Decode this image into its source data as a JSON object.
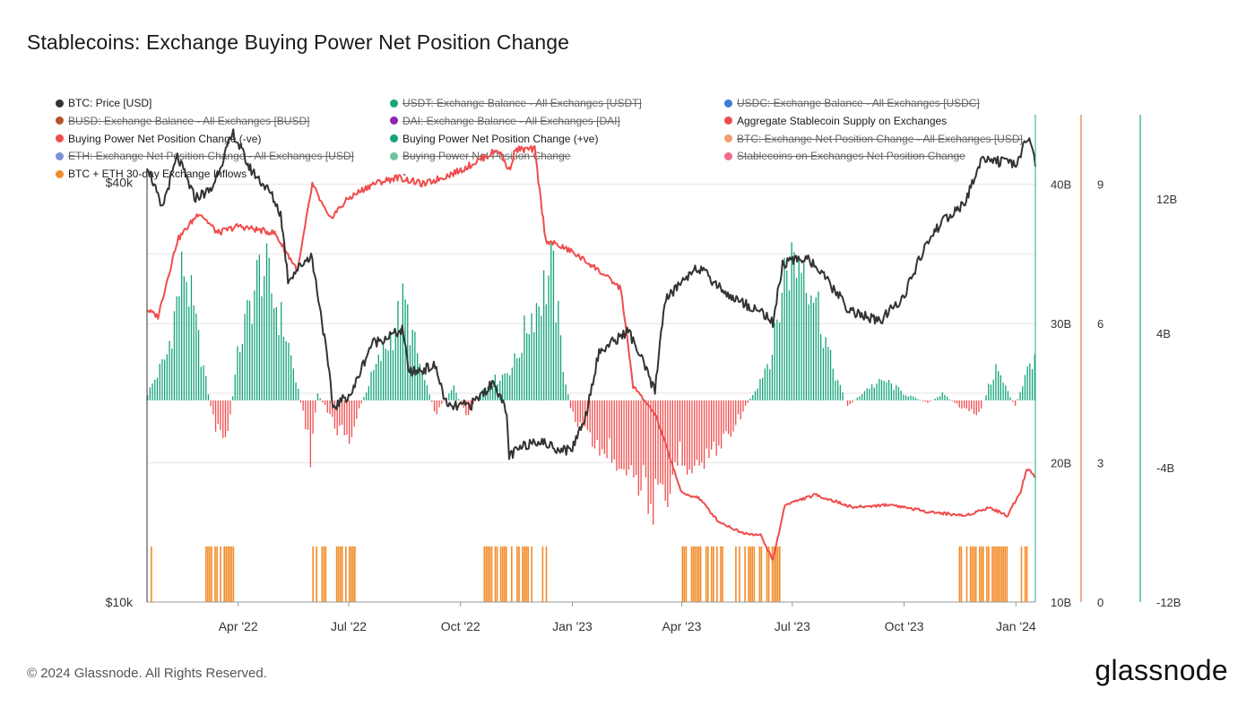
{
  "title": "Stablecoins: Exchange Buying Power Net Position Change",
  "footer": "© 2024 Glassnode. All Rights Reserved.",
  "brand": "glassnode",
  "legend": [
    {
      "label": "BTC: Price [USD]",
      "color": "#333333",
      "hidden": false
    },
    {
      "label": "USDT: Exchange Balance - All Exchanges [USDT]",
      "color": "#1aa57e",
      "hidden": true
    },
    {
      "label": "USDC: Exchange Balance - All Exchanges [USDC]",
      "color": "#3a7bd5",
      "hidden": true
    },
    {
      "label": "BUSD: Exchange Balance - All Exchanges [BUSD]",
      "color": "#b5542a",
      "hidden": true
    },
    {
      "label": "DAI: Exchange Balance - All Exchanges [DAI]",
      "color": "#8e24aa",
      "hidden": true
    },
    {
      "label": "Aggregate Stablecoin Supply on Exchanges",
      "color": "#f04c4c",
      "hidden": false
    },
    {
      "label": "Buying Power Net Position Change (-ve)",
      "color": "#f04c4c",
      "hidden": false
    },
    {
      "label": "Buying Power Net Position Change (+ve)",
      "color": "#13a37a",
      "hidden": false
    },
    {
      "label": "BTC: Exchange Net Position Change - All Exchanges [USD]",
      "color": "#f0a070",
      "hidden": true
    },
    {
      "label": "ETH: Exchange Net Position Change - All Exchanges [USD]",
      "color": "#7b8fd6",
      "hidden": true
    },
    {
      "label": "Buying Power Net Position Change",
      "color": "#6cc29c",
      "hidden": true
    },
    {
      "label": "Stablecoins on Exchanges Net Position Change",
      "color": "#ef6b8a",
      "hidden": true
    },
    {
      "label": "BTC + ETH 30-day Exchange Inflows",
      "color": "#f28c28",
      "hidden": false
    },
    {
      "label": "-",
      "color": "",
      "hidden": false
    }
  ],
  "chart_data": {
    "type": "line",
    "x_ticks": [
      "Apr '22",
      "Jul '22",
      "Oct '22",
      "Jan '23",
      "Apr '23",
      "Jul '23",
      "Oct '23",
      "Jan '24"
    ],
    "x_range": [
      "2022-01-16",
      "2024-01-17"
    ],
    "y_left": {
      "scale": "log",
      "range": [
        10000,
        50000
      ],
      "ticks": [
        "$40k",
        "$10k"
      ],
      "tick_values": [
        40000,
        10000
      ]
    },
    "y_right_supply": {
      "range": [
        10,
        45
      ],
      "ticks": [
        "40B",
        "30B",
        "20B",
        "10B"
      ],
      "tick_values": [
        40,
        30,
        20,
        10
      ],
      "color": "#20a88a"
    },
    "y_right_inflows": {
      "range": [
        0,
        10.5
      ],
      "ticks": [
        "9",
        "6",
        "3",
        "0"
      ],
      "tick_values": [
        9,
        6,
        3,
        0
      ],
      "color": "#e07a3a"
    },
    "y_right_netchange": {
      "range": [
        -12,
        17
      ],
      "ticks": [
        "12B",
        "4B",
        "-4B",
        "-12B"
      ],
      "tick_values": [
        12,
        4,
        -4,
        -12
      ],
      "color": "#20a88a"
    },
    "series": [
      {
        "name": "BTC: Price [USD]",
        "axis": "left",
        "color": "#333333",
        "points": [
          [
            "2022-01-16",
            42500
          ],
          [
            "2022-01-28",
            36500
          ],
          [
            "2022-02-10",
            43500
          ],
          [
            "2022-02-24",
            38000
          ],
          [
            "2022-03-10",
            39000
          ],
          [
            "2022-03-28",
            47000
          ],
          [
            "2022-04-10",
            42000
          ],
          [
            "2022-04-28",
            38500
          ],
          [
            "2022-05-06",
            36000
          ],
          [
            "2022-05-12",
            29000
          ],
          [
            "2022-05-31",
            31500
          ],
          [
            "2022-06-13",
            22500
          ],
          [
            "2022-06-18",
            19000
          ],
          [
            "2022-07-04",
            20000
          ],
          [
            "2022-07-20",
            23500
          ],
          [
            "2022-08-14",
            24500
          ],
          [
            "2022-08-20",
            21300
          ],
          [
            "2022-09-10",
            21800
          ],
          [
            "2022-09-20",
            19000
          ],
          [
            "2022-10-10",
            19200
          ],
          [
            "2022-10-29",
            20700
          ],
          [
            "2022-11-08",
            18500
          ],
          [
            "2022-11-10",
            16200
          ],
          [
            "2022-12-01",
            17100
          ],
          [
            "2022-12-20",
            16600
          ],
          [
            "2022-12-31",
            16500
          ],
          [
            "2023-01-12",
            18500
          ],
          [
            "2023-01-23",
            22800
          ],
          [
            "2023-02-16",
            24500
          ],
          [
            "2023-03-10",
            20000
          ],
          [
            "2023-03-18",
            27000
          ],
          [
            "2023-04-13",
            30300
          ],
          [
            "2023-05-10",
            27500
          ],
          [
            "2023-06-10",
            25800
          ],
          [
            "2023-06-15",
            25000
          ],
          [
            "2023-06-23",
            30500
          ],
          [
            "2023-07-13",
            31300
          ],
          [
            "2023-08-17",
            26200
          ],
          [
            "2023-09-11",
            25200
          ],
          [
            "2023-10-01",
            27500
          ],
          [
            "2023-10-23",
            33500
          ],
          [
            "2023-11-01",
            35000
          ],
          [
            "2023-11-20",
            37300
          ],
          [
            "2023-12-05",
            43500
          ],
          [
            "2023-12-31",
            42200
          ],
          [
            "2024-01-11",
            46500
          ],
          [
            "2024-01-17",
            42700
          ]
        ]
      },
      {
        "name": "Aggregate Stablecoin Supply on Exchanges",
        "axis": "right_supply",
        "color": "#f04c4c",
        "points": [
          [
            "2022-01-16",
            31000
          ],
          [
            "2022-01-25",
            30500
          ],
          [
            "2022-02-10",
            36000
          ],
          [
            "2022-02-28",
            38000
          ],
          [
            "2022-03-15",
            36500
          ],
          [
            "2022-04-01",
            37000
          ],
          [
            "2022-05-01",
            36500
          ],
          [
            "2022-05-20",
            33800
          ],
          [
            "2022-06-01",
            40000
          ],
          [
            "2022-06-15",
            37500
          ],
          [
            "2022-07-01",
            39000
          ],
          [
            "2022-07-20",
            40000
          ],
          [
            "2022-08-10",
            40500
          ],
          [
            "2022-09-01",
            40000
          ],
          [
            "2022-10-01",
            41000
          ],
          [
            "2022-11-01",
            42500
          ],
          [
            "2022-11-10",
            41000
          ],
          [
            "2022-11-15",
            42500
          ],
          [
            "2022-12-01",
            42500
          ],
          [
            "2022-12-10",
            36000
          ],
          [
            "2022-12-31",
            35200
          ],
          [
            "2023-01-20",
            34000
          ],
          [
            "2023-02-10",
            32500
          ],
          [
            "2023-02-20",
            25500
          ],
          [
            "2023-03-10",
            23500
          ],
          [
            "2023-03-20",
            21000
          ],
          [
            "2023-04-01",
            17800
          ],
          [
            "2023-04-15",
            17500
          ],
          [
            "2023-05-01",
            15800
          ],
          [
            "2023-05-20",
            15000
          ],
          [
            "2023-06-05",
            14800
          ],
          [
            "2023-06-15",
            13000
          ],
          [
            "2023-06-25",
            17000
          ],
          [
            "2023-07-20",
            17700
          ],
          [
            "2023-08-20",
            16800
          ],
          [
            "2023-09-20",
            17000
          ],
          [
            "2023-10-20",
            16500
          ],
          [
            "2023-11-20",
            16200
          ],
          [
            "2023-12-10",
            16800
          ],
          [
            "2023-12-25",
            16200
          ],
          [
            "2024-01-05",
            18000
          ],
          [
            "2024-01-10",
            19600
          ],
          [
            "2024-01-17",
            19000
          ]
        ]
      },
      {
        "name": "Buying Power Net Position Change",
        "axis": "right_netchange",
        "color_pos": "#13a37a",
        "color_neg": "#f04c4c",
        "points": [
          [
            "2022-01-16",
            0.5
          ],
          [
            "2022-02-01",
            3.5
          ],
          [
            "2022-02-15",
            10.5
          ],
          [
            "2022-03-05",
            1.5
          ],
          [
            "2022-03-12",
            -1.8
          ],
          [
            "2022-03-22",
            -3.2
          ],
          [
            "2022-04-01",
            4
          ],
          [
            "2022-04-20",
            10.5
          ],
          [
            "2022-05-10",
            5
          ],
          [
            "2022-05-24",
            -1
          ],
          [
            "2022-05-30",
            -4
          ],
          [
            "2022-06-05",
            0.5
          ],
          [
            "2022-06-20",
            -2
          ],
          [
            "2022-07-01",
            -3
          ],
          [
            "2022-07-10",
            -0.5
          ],
          [
            "2022-07-20",
            2
          ],
          [
            "2022-08-05",
            5
          ],
          [
            "2022-08-15",
            7.5
          ],
          [
            "2022-08-30",
            2
          ],
          [
            "2022-09-10",
            -1
          ],
          [
            "2022-09-25",
            1
          ],
          [
            "2022-10-05",
            -1.2
          ],
          [
            "2022-10-20",
            1
          ],
          [
            "2022-11-05",
            2
          ],
          [
            "2022-11-15",
            3
          ],
          [
            "2022-11-25",
            6
          ],
          [
            "2022-12-05",
            8
          ],
          [
            "2022-12-15",
            10
          ],
          [
            "2022-12-25",
            2
          ],
          [
            "2022-12-31",
            -1
          ],
          [
            "2023-01-20",
            -3.5
          ],
          [
            "2023-02-10",
            -4.5
          ],
          [
            "2023-02-25",
            -6
          ],
          [
            "2023-03-10",
            -8
          ],
          [
            "2023-03-18",
            -9
          ],
          [
            "2023-03-28",
            -4
          ],
          [
            "2023-04-15",
            -5
          ],
          [
            "2023-05-05",
            -3
          ],
          [
            "2023-05-20",
            -1
          ],
          [
            "2023-06-01",
            1
          ],
          [
            "2023-06-15",
            4
          ],
          [
            "2023-06-25",
            10.5
          ],
          [
            "2023-07-10",
            11
          ],
          [
            "2023-07-20",
            8
          ],
          [
            "2023-08-01",
            3
          ],
          [
            "2023-08-15",
            -0.5
          ],
          [
            "2023-09-01",
            1
          ],
          [
            "2023-09-15",
            1.5
          ],
          [
            "2023-10-01",
            0.5
          ],
          [
            "2023-10-20",
            -0.2
          ],
          [
            "2023-11-01",
            0.5
          ],
          [
            "2023-11-20",
            -0.8
          ],
          [
            "2023-12-01",
            -1
          ],
          [
            "2023-12-15",
            2.5
          ],
          [
            "2023-12-31",
            -0.5
          ],
          [
            "2024-01-05",
            1
          ],
          [
            "2024-01-17",
            4
          ]
        ]
      },
      {
        "name": "BTC + ETH 30-day Exchange Inflows",
        "axis": "right_inflows",
        "color": "#f28c28",
        "points": [
          [
            "2022-01-16",
            1.2
          ],
          [
            "2022-01-17",
            1.2
          ],
          [
            "2022-03-05",
            1.2
          ],
          [
            "2022-03-28",
            1.2
          ],
          [
            "2022-06-01",
            1.2
          ],
          [
            "2022-07-10",
            1.2
          ],
          [
            "2022-08-30",
            1.2
          ],
          [
            "2022-09-15",
            1.2
          ],
          [
            "2022-10-20",
            1.2
          ],
          [
            "2022-12-10",
            1.2
          ],
          [
            "2023-04-01",
            1.2
          ],
          [
            "2023-05-05",
            1.2
          ],
          [
            "2023-05-15",
            1.2
          ],
          [
            "2023-06-10",
            1.2
          ],
          [
            "2023-06-20",
            1.2
          ],
          [
            "2023-11-15",
            1.2
          ],
          [
            "2023-12-25",
            1.2
          ],
          [
            "2024-01-05",
            1.2
          ]
        ]
      }
    ]
  }
}
